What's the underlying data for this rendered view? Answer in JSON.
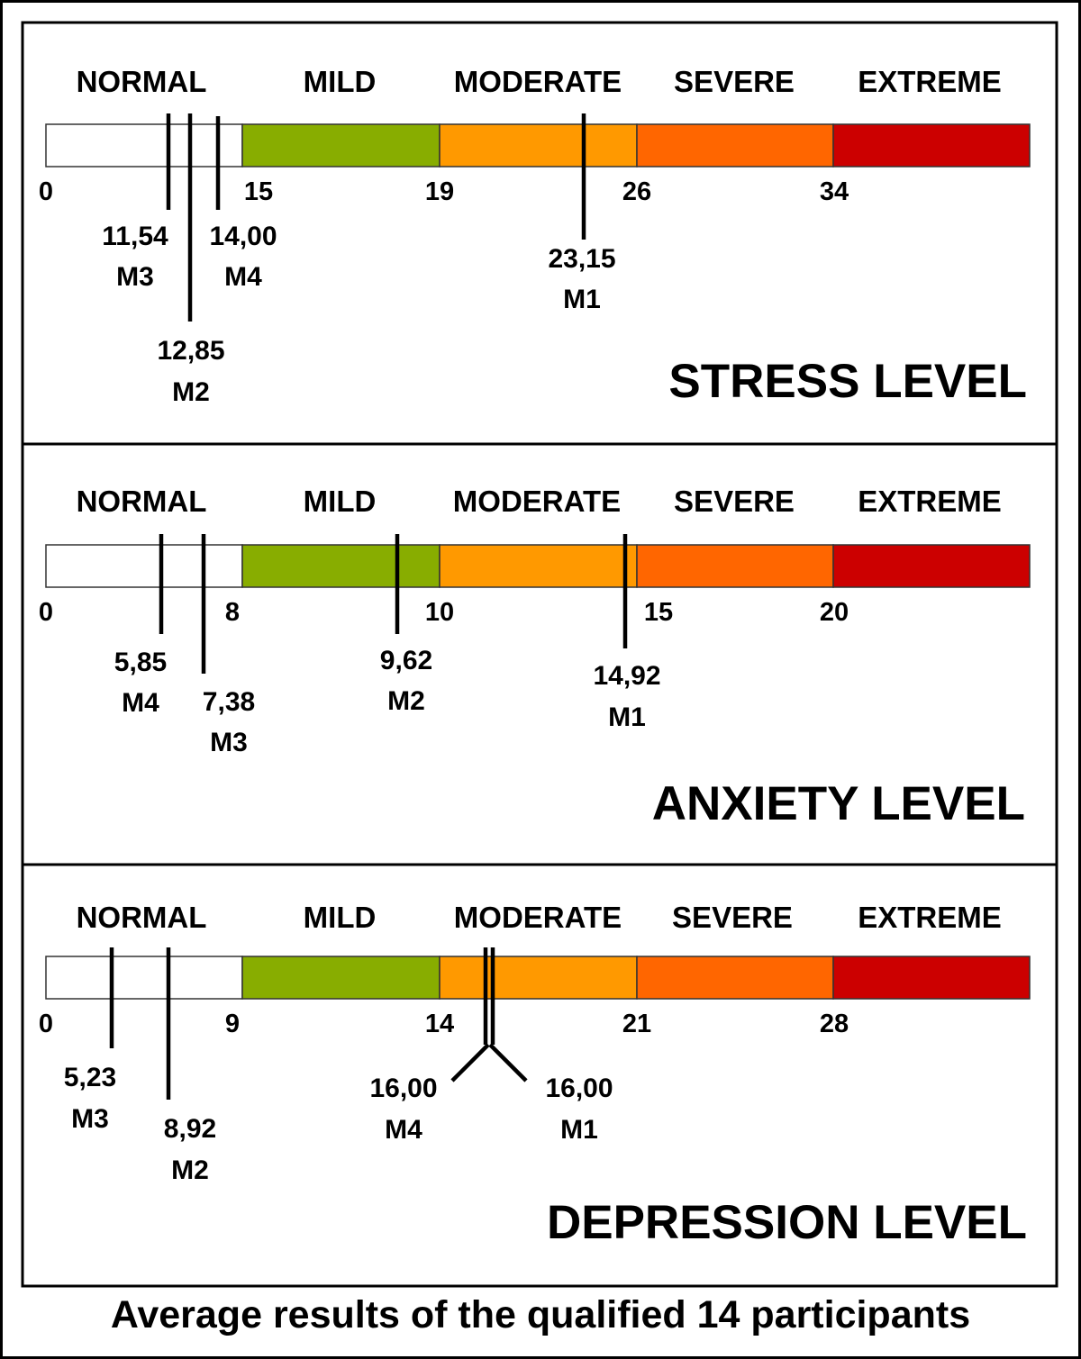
{
  "caption": "Average results of the qualified 14 participants",
  "colors": {
    "normal": "#ffffff",
    "mild": "#88ad00",
    "moderate": "#ff9900",
    "severe": "#ff6600",
    "extreme": "#cc0000"
  },
  "panels": [
    {
      "title": "STRESS LEVEL",
      "categories": [
        "NORMAL",
        "MILD",
        "MODERATE",
        "SEVERE",
        "EXTREME"
      ],
      "thresholds": [
        "0",
        "15",
        "19",
        "26",
        "34"
      ],
      "markers": [
        {
          "value": "11,54",
          "label": "M3"
        },
        {
          "value": "12,85",
          "label": "M2"
        },
        {
          "value": "14,00",
          "label": "M4"
        },
        {
          "value": "23,15",
          "label": "M1"
        }
      ]
    },
    {
      "title": "ANXIETY LEVEL",
      "categories": [
        "NORMAL",
        "MILD",
        "MODERATE",
        "SEVERE",
        "EXTREME"
      ],
      "thresholds": [
        "0",
        "8",
        "10",
        "15",
        "20"
      ],
      "markers": [
        {
          "value": "5,85",
          "label": "M4"
        },
        {
          "value": "7,38",
          "label": "M3"
        },
        {
          "value": "9,62",
          "label": "M2"
        },
        {
          "value": "14,92",
          "label": "M1"
        }
      ]
    },
    {
      "title": "DEPRESSION LEVEL",
      "categories": [
        "NORMAL",
        "MILD",
        "MODERATE",
        "SEVERE",
        "EXTREME"
      ],
      "thresholds": [
        "0",
        "9",
        "14",
        "21",
        "28"
      ],
      "markers": [
        {
          "value": "5,23",
          "label": "M3"
        },
        {
          "value": "8,92",
          "label": "M2"
        },
        {
          "value": "16,00",
          "label": "M4"
        },
        {
          "value": "16,00",
          "label": "M1"
        }
      ]
    }
  ]
}
